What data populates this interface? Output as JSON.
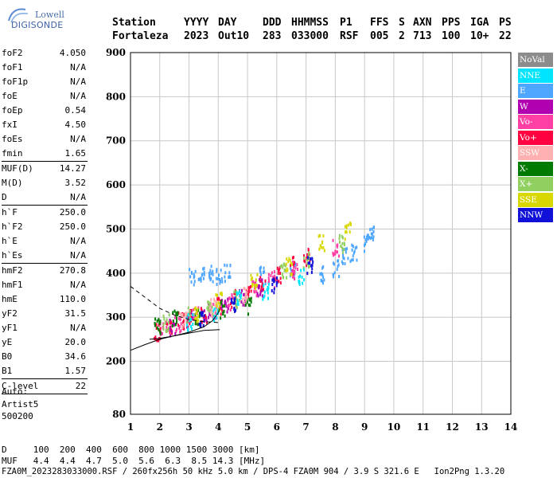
{
  "logo": {
    "line1": "Lowell",
    "line2": "DIGISONDE"
  },
  "header": {
    "labels": [
      "Station",
      "YYYY",
      "DAY",
      "DDD",
      "HHMMSS",
      "P1",
      "FFS",
      "S",
      "AXN",
      "PPS",
      "IGA",
      "PS"
    ],
    "values": [
      "Fortaleza",
      "2023",
      "Out10",
      "283",
      "033000",
      "RSF",
      "005",
      "2",
      "713",
      "100",
      "10+",
      "22"
    ]
  },
  "params": [
    {
      "group": [
        {
          "name": "foF2",
          "value": "4.050"
        },
        {
          "name": "foF1",
          "value": "N/A"
        },
        {
          "name": "foF1p",
          "value": "N/A"
        },
        {
          "name": "foE",
          "value": "N/A"
        },
        {
          "name": "foEp",
          "value": "0.54"
        },
        {
          "name": "fxI",
          "value": "4.50"
        },
        {
          "name": "foEs",
          "value": "N/A"
        },
        {
          "name": "fmin",
          "value": "1.65"
        }
      ]
    },
    {
      "group": [
        {
          "name": "MUF(D)",
          "value": "14.27"
        },
        {
          "name": "M(D)",
          "value": "3.52"
        },
        {
          "name": "D",
          "value": "N/A"
        }
      ]
    },
    {
      "group": [
        {
          "name": "h`F",
          "value": "250.0"
        },
        {
          "name": "h`F2",
          "value": "250.0"
        },
        {
          "name": "h`E",
          "value": "N/A"
        },
        {
          "name": "h`Es",
          "value": "N/A"
        }
      ]
    },
    {
      "group": [
        {
          "name": "hmF2",
          "value": "270.8"
        },
        {
          "name": "hmF1",
          "value": "N/A"
        },
        {
          "name": "hmE",
          "value": "110.0"
        },
        {
          "name": "yF2",
          "value": "31.5"
        },
        {
          "name": "yF1",
          "value": "N/A"
        },
        {
          "name": "yE",
          "value": "20.0"
        },
        {
          "name": "B0",
          "value": "34.6"
        },
        {
          "name": "B1",
          "value": "1.57"
        }
      ]
    },
    {
      "group": [
        {
          "name": "C-level",
          "value": "22"
        }
      ]
    }
  ],
  "auto": [
    "Auto:",
    "Artist5",
    "500200"
  ],
  "footer": {
    "line1": "D     100  200  400  600  800 1000 1500 3000 [km]",
    "line2": "MUF   4.4  4.4  4.7  5.0  5.6  6.3  8.5 14.3 [MHz]",
    "line3": "FZA0M_2023283033000.RSF / 260fx256h 50 kHz 5.0 km / DPS-4 FZA0M 904 / 3.9 S 321.6 E   Ion2Png 1.3.20"
  },
  "legend": [
    {
      "label": "NoVal",
      "color": "#8c8c8c"
    },
    {
      "label": "NNE",
      "color": "#00e5ff"
    },
    {
      "label": "E",
      "color": "#4da6ff"
    },
    {
      "label": "W",
      "color": "#b000b0"
    },
    {
      "label": "Vo-",
      "color": "#ff3fa4"
    },
    {
      "label": "Vo+",
      "color": "#ff0040"
    },
    {
      "label": "SSW",
      "color": "#ffb0b0"
    },
    {
      "label": "X-",
      "color": "#007a00"
    },
    {
      "label": "X+",
      "color": "#90d060"
    },
    {
      "label": "SSE",
      "color": "#d8d800"
    },
    {
      "label": "NNW",
      "color": "#1010d8"
    }
  ],
  "chart_data": {
    "type": "scatter",
    "xlim": [
      1,
      14
    ],
    "ylim": [
      80,
      900
    ],
    "x_ticks": [
      "1",
      "2",
      "3",
      "4",
      "5",
      "6",
      "7",
      "8",
      "9",
      "10",
      "11",
      "12",
      "13",
      "14"
    ],
    "y_ticks": [
      "80",
      "200",
      "300",
      "400",
      "500",
      "600",
      "700",
      "800",
      "900"
    ],
    "grid": true,
    "legend_position": "right",
    "series": [
      {
        "name": "E",
        "points": [
          [
            3.1,
            395
          ],
          [
            3.4,
            398
          ],
          [
            3.7,
            402
          ],
          [
            4.0,
            395
          ],
          [
            4.3,
            405
          ],
          [
            5.5,
            398
          ],
          [
            6.5,
            405
          ],
          [
            7.5,
            400
          ],
          [
            8.0,
            415
          ],
          [
            8.3,
            440
          ],
          [
            8.6,
            450
          ],
          [
            9.0,
            470
          ],
          [
            9.2,
            495
          ]
        ]
      },
      {
        "name": "Vo+",
        "points": [
          [
            1.9,
            270
          ],
          [
            2.3,
            285
          ],
          [
            2.7,
            295
          ],
          [
            3.0,
            300
          ],
          [
            3.5,
            310
          ],
          [
            4.0,
            330
          ],
          [
            4.5,
            345
          ],
          [
            5.0,
            360
          ],
          [
            5.5,
            380
          ],
          [
            6.0,
            400
          ],
          [
            6.5,
            420
          ],
          [
            7.0,
            440
          ]
        ]
      },
      {
        "name": "Vo-",
        "points": [
          [
            2.1,
            275
          ],
          [
            2.6,
            290
          ],
          [
            3.2,
            305
          ],
          [
            3.8,
            320
          ],
          [
            4.4,
            340
          ],
          [
            5.2,
            365
          ],
          [
            5.8,
            390
          ],
          [
            6.6,
            410
          ],
          [
            8.0,
            460
          ]
        ]
      },
      {
        "name": "W",
        "points": [
          [
            2.4,
            280
          ],
          [
            3.0,
            300
          ],
          [
            3.6,
            315
          ],
          [
            4.2,
            335
          ],
          [
            4.8,
            350
          ],
          [
            5.4,
            370
          ]
        ]
      },
      {
        "name": "X-",
        "points": [
          [
            1.9,
            285
          ],
          [
            2.5,
            300
          ],
          [
            3.3,
            300
          ],
          [
            4.1,
            320
          ],
          [
            5.0,
            330
          ]
        ]
      },
      {
        "name": "X+",
        "points": [
          [
            2.2,
            290
          ],
          [
            2.9,
            310
          ],
          [
            3.7,
            325
          ],
          [
            4.6,
            345
          ],
          [
            6.2,
            405
          ],
          [
            7.0,
            430
          ],
          [
            8.2,
            470
          ]
        ]
      },
      {
        "name": "SSE",
        "points": [
          [
            3.2,
            310
          ],
          [
            4.0,
            340
          ],
          [
            5.2,
            380
          ],
          [
            6.4,
            420
          ],
          [
            7.5,
            470
          ],
          [
            8.4,
            500
          ]
        ]
      },
      {
        "name": "NNE",
        "points": [
          [
            3.0,
            290
          ],
          [
            3.9,
            315
          ],
          [
            4.7,
            345
          ],
          [
            5.6,
            360
          ],
          [
            6.8,
            395
          ]
        ]
      },
      {
        "name": "SSW",
        "points": [
          [
            2.8,
            300
          ],
          [
            3.8,
            325
          ],
          [
            4.9,
            355
          ]
        ]
      },
      {
        "name": "NNW",
        "points": [
          [
            3.4,
            295
          ],
          [
            4.5,
            330
          ],
          [
            5.9,
            375
          ],
          [
            7.1,
            420
          ]
        ]
      }
    ],
    "profile_line": {
      "x": [
        1.0,
        1.5,
        2.0,
        2.5,
        3.0,
        3.5,
        4.05
      ],
      "y": [
        225,
        238,
        250,
        258,
        264,
        270,
        272
      ]
    },
    "trace_curve": {
      "x": [
        1.65,
        2.0,
        2.5,
        3.0,
        3.5,
        3.8,
        4.0,
        4.05
      ],
      "y": [
        250,
        252,
        258,
        266,
        278,
        292,
        310,
        320
      ]
    },
    "dashed_curve": {
      "x": [
        1.0,
        1.3,
        1.7,
        2.0,
        2.5,
        3.0,
        3.5,
        4.0
      ],
      "y": [
        370,
        355,
        335,
        320,
        305,
        295,
        290,
        288
      ]
    }
  }
}
